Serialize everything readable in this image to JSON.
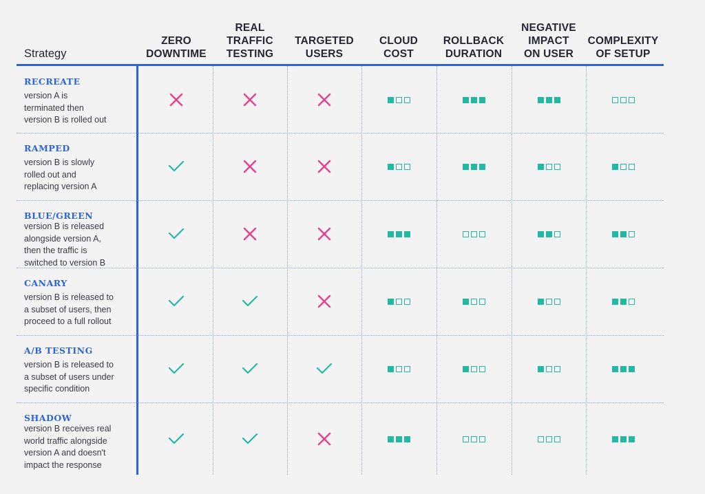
{
  "colors": {
    "accent_blue": "#2d64d8",
    "check_teal": "#23b8a2",
    "cross_pink": "#e8408a",
    "box_teal": "#23b8a2",
    "background": "#f3f3f4"
  },
  "headers": [
    {
      "key": "strategy",
      "lines": [
        "Strategy"
      ]
    },
    {
      "key": "zero_downtime",
      "lines": [
        "ZERO",
        "DOWNTIME"
      ]
    },
    {
      "key": "real_traffic_testing",
      "lines": [
        "REAL",
        "TRAFFIC",
        "TESTING"
      ]
    },
    {
      "key": "targeted_users",
      "lines": [
        "TARGETED",
        "USERS"
      ]
    },
    {
      "key": "cloud_cost",
      "lines": [
        "CLOUD",
        "COST"
      ]
    },
    {
      "key": "rollback_duration",
      "lines": [
        "ROLLBACK",
        "DURATION"
      ]
    },
    {
      "key": "negative_impact",
      "lines": [
        "NEGATIVE",
        "IMPACT",
        "ON USER"
      ]
    },
    {
      "key": "complexity_of_setup",
      "lines": [
        "COMPLEXITY",
        "OF SETUP"
      ]
    }
  ],
  "rows": [
    {
      "name": "RECREATE",
      "description": [
        "version A is",
        "terminated then",
        "version B is rolled out"
      ],
      "zero_downtime": "cross",
      "real_traffic_testing": "cross",
      "targeted_users": "cross",
      "cloud_cost": 1,
      "rollback_duration": 3,
      "negative_impact": 3,
      "complexity_of_setup": 0
    },
    {
      "name": "RAMPED",
      "description": [
        "version B is slowly",
        "rolled out and",
        "replacing version A"
      ],
      "zero_downtime": "check",
      "real_traffic_testing": "cross",
      "targeted_users": "cross",
      "cloud_cost": 1,
      "rollback_duration": 3,
      "negative_impact": 1,
      "complexity_of_setup": 1
    },
    {
      "name": "BLUE/GREEN",
      "description": [
        "version B is released",
        "alongside version A,",
        "then the traffic is",
        "switched to version B"
      ],
      "zero_downtime": "check",
      "real_traffic_testing": "cross",
      "targeted_users": "cross",
      "cloud_cost": 3,
      "rollback_duration": 0,
      "negative_impact": 2,
      "complexity_of_setup": 2
    },
    {
      "name": "CANARY",
      "description": [
        "version B is released to",
        "a subset of users, then",
        "proceed to a full rollout"
      ],
      "zero_downtime": "check",
      "real_traffic_testing": "check",
      "targeted_users": "cross",
      "cloud_cost": 1,
      "rollback_duration": 1,
      "negative_impact": 1,
      "complexity_of_setup": 2
    },
    {
      "name": "A/B TESTING",
      "description": [
        "version B is released to",
        "a subset of users under",
        "specific condition"
      ],
      "zero_downtime": "check",
      "real_traffic_testing": "check",
      "targeted_users": "check",
      "cloud_cost": 1,
      "rollback_duration": 1,
      "negative_impact": 1,
      "complexity_of_setup": 3
    },
    {
      "name": "SHADOW",
      "description": [
        "version B receives real",
        "world traffic alongside",
        "version A and doesn't",
        "impact the response"
      ],
      "zero_downtime": "check",
      "real_traffic_testing": "check",
      "targeted_users": "cross",
      "cloud_cost": 3,
      "rollback_duration": 0,
      "negative_impact": 0,
      "complexity_of_setup": 3
    }
  ]
}
